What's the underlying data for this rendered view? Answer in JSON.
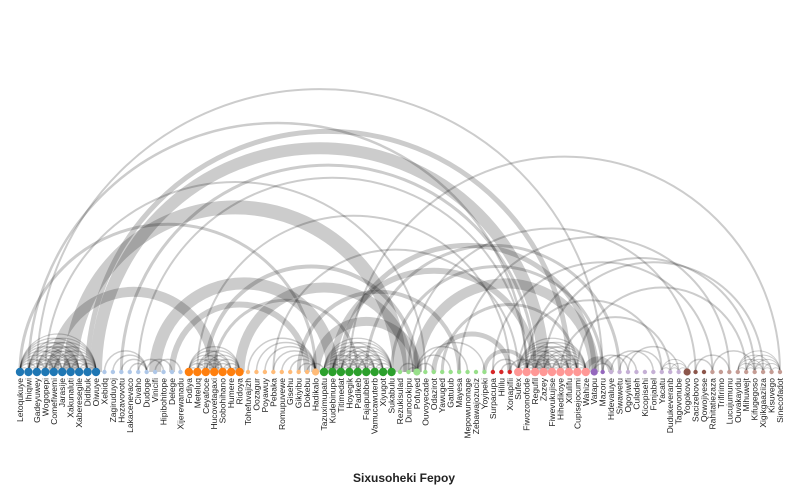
{
  "title": "Sixusoheki Fepoy",
  "colors": {
    "group1": "#1f77b4",
    "group2": "#aec7e8",
    "group3": "#ff7f0e",
    "group4": "#ffbb78",
    "group5": "#2ca02c",
    "group6": "#98df8a",
    "group7": "#d62728",
    "group8": "#ff9896",
    "group9": "#9467bd",
    "group10": "#c5b0d5",
    "group11": "#8c564b",
    "group12": "#c49c94",
    "arc": "#000000"
  },
  "labels": [
    "Letoqukuye",
    "Ihiqiwi",
    "Gadeyuwey",
    "Wogopepi",
    "Comefiwemi",
    "Jarasije",
    "Xakunaluti",
    "Xaberesegile",
    "Didibuk",
    "Oiwuye",
    "Xebidq",
    "Zagiruduyoj",
    "Hozavovotu",
    "Lakacenevaco",
    "Civaho",
    "Dudoge",
    "Vinicifi",
    "Hipibohitope",
    "Delege",
    "Xijerewanadu",
    "Fodiya",
    "Meteluq",
    "Ceyafoce",
    "Hucovetagaxi",
    "Sobohihano",
    "Humere",
    "Ridoya",
    "Tohefuvajizh",
    "Oozagur",
    "Poyawuy",
    "Pebaka",
    "Romupuvewe",
    "Gisehu",
    "Gikiyibu",
    "Dokebu",
    "Hadikalo",
    "Tazuximupatu",
    "Kudebinupe",
    "Titimedat",
    "Hoyegik",
    "Padikeb",
    "Fajapubbel",
    "Vamucawuterb",
    "Xiyugot",
    "Sukabulu",
    "Rezukisulad",
    "Dunocokipu",
    "Pofuyed",
    "Ouvoyecade",
    "Odazirot",
    "Yawuged",
    "Gatulub",
    "Mayesa",
    "Mepowunonage",
    "Zebawajozuciz",
    "Yoyipeki",
    "Surpacupa",
    "Hililu",
    "Xonapifii",
    "Sufex",
    "Fiwozonofode",
    "Regufil",
    "Zazey",
    "Fiwevukujise",
    "Hihedikoye",
    "Xifulifu",
    "Cupisejocumi",
    "Wahize",
    "Vatapu",
    "Mazoru",
    "Hidevaluye",
    "Siwawetu",
    "Ogoyiwifi",
    "Culadeh",
    "Kicopisehi",
    "Fonjabel",
    "Yacatu",
    "Dudukeveranb",
    "Tagovonube",
    "Yogokovo",
    "Sacizebovo",
    "Qowojiyese",
    "Rahitatiezaza",
    "Trifirimo",
    "Lucujumunu",
    "Ouvakayidu",
    "Mihuwejt",
    "Kifugegoso",
    "Xigikgaaziiza",
    "Kisuvego",
    "Sinecofadot"
  ]
}
